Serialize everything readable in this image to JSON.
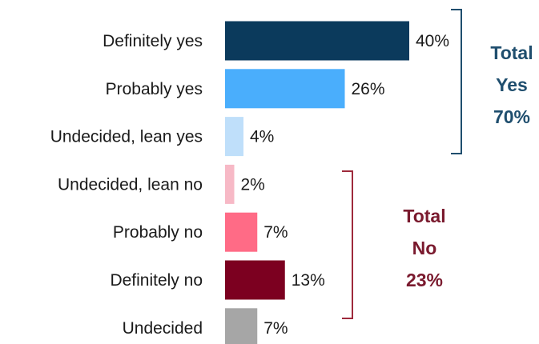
{
  "chart_data": {
    "type": "bar",
    "orientation": "horizontal",
    "categories": [
      "Definitely yes",
      "Probably yes",
      "Undecided, lean yes",
      "Undecided, lean no",
      "Probably no",
      "Definitely no",
      "Undecided"
    ],
    "values": [
      40,
      26,
      4,
      2,
      7,
      13,
      7
    ],
    "value_labels": [
      "40%",
      "26%",
      "4%",
      "2%",
      "7%",
      "13%",
      "7%"
    ],
    "colors": [
      "#0b3a5c",
      "#4aaefc",
      "#bfdffa",
      "#f7b9c6",
      "#ff6b86",
      "#7c0020",
      "#a6a6a6"
    ],
    "title": "",
    "xlabel": "",
    "ylabel": "",
    "grid": false,
    "annotations": [
      {
        "lines": [
          "Total",
          "Yes",
          "70%"
        ],
        "color": "#1f4e6e",
        "bracket_color": "#1f4e6e",
        "covers": [
          "Definitely yes",
          "Probably yes",
          "Undecided, lean yes"
        ]
      },
      {
        "lines": [
          "Total",
          "No",
          "23%"
        ],
        "color": "#7a1a2e",
        "bracket_color": "#9e2a3c",
        "covers": [
          "Undecided, lean no",
          "Probably no",
          "Definitely no"
        ]
      }
    ]
  }
}
